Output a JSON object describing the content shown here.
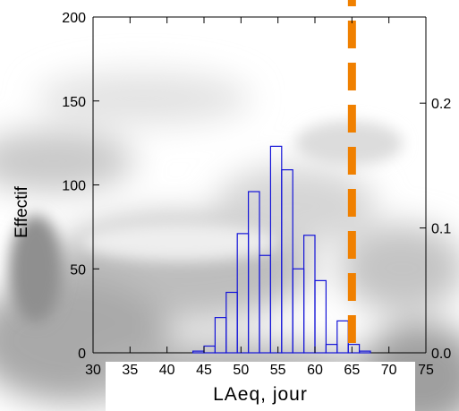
{
  "chart_data": {
    "type": "bar",
    "title": "",
    "xlabel": "LAeq, jour",
    "ylabel": "Effectif",
    "xlim": [
      30,
      75
    ],
    "ylim": [
      0,
      200
    ],
    "y2lim": [
      0,
      0.269
    ],
    "xticks": [
      30,
      35,
      40,
      45,
      50,
      55,
      60,
      65,
      70,
      75
    ],
    "yticks": [
      0,
      50,
      100,
      150,
      200
    ],
    "y2ticks": [
      0.0,
      0.1,
      0.2
    ],
    "bin_width": 1.5,
    "bin_edges_start": 43.5,
    "values": [
      1,
      4,
      21,
      36,
      71,
      96,
      58,
      123,
      109,
      50,
      70,
      43,
      5,
      19,
      5,
      1
    ],
    "reference_line": {
      "x": 65,
      "style": "dashed",
      "color": "#f08000"
    },
    "bar_color": "#1414d8",
    "grid": false,
    "legend": "none"
  }
}
